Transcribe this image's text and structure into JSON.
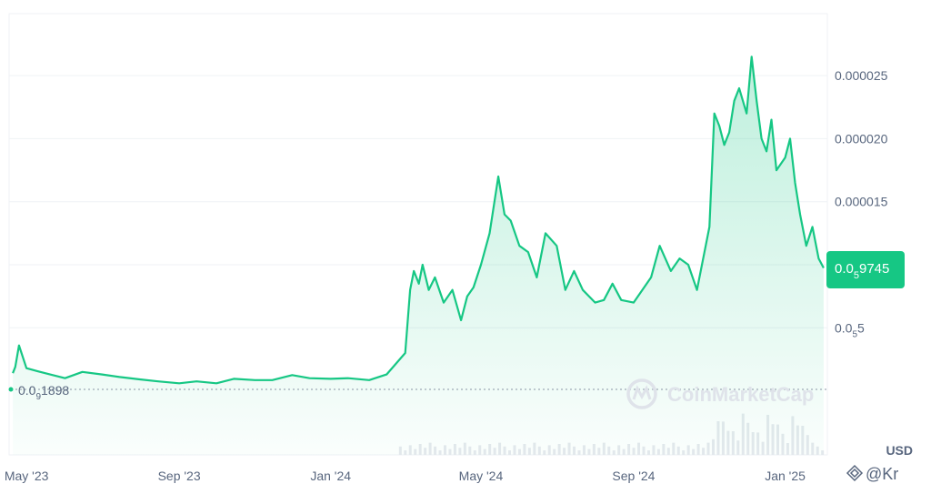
{
  "chart_data": {
    "type": "area",
    "x_labels": [
      "May '23",
      "Sep '23",
      "Jan '24",
      "May '24",
      "Sep '24",
      "Jan '25"
    ],
    "y_tick_labels": [
      "0.000025",
      "0.000020",
      "0.000015"
    ],
    "y_tick_values": [
      2.5e-05,
      2e-05,
      1.5e-05
    ],
    "y_tick_sub_label": {
      "prefix": "0.0",
      "sub": "5",
      "suffix": "5",
      "value": 5e-06
    },
    "current_price": {
      "prefix": "0.0",
      "sub": "5",
      "suffix": "9745",
      "value": 9.745e-06
    },
    "start_price": {
      "prefix": "0.0",
      "sub": "9",
      "suffix": "1898",
      "value": 1.898e-09
    },
    "unit": "USD",
    "watermark": "CoinMarketCap",
    "corner_mark": "@Kr",
    "colors": {
      "line": "#16c784",
      "badge": "#16c784",
      "grid": "#eff2f5",
      "axis_text": "#58667e",
      "volume": "#e6e9ee"
    },
    "ylim": [
      0,
      3.15e-05
    ],
    "grid": true,
    "series": [
      {
        "x": [
          "2023-04-20",
          "2023-04-22",
          "2023-04-25",
          "2023-05-01",
          "2023-05-10",
          "2023-05-20",
          "2023-06-01",
          "2023-06-15",
          "2023-07-01",
          "2023-07-15",
          "2023-08-01",
          "2023-08-15",
          "2023-09-01",
          "2023-09-15",
          "2023-10-01",
          "2023-10-15",
          "2023-11-01",
          "2023-11-15",
          "2023-12-01",
          "2023-12-15",
          "2024-01-01",
          "2024-01-15",
          "2024-02-01",
          "2024-02-15",
          "2024-03-01",
          "2024-03-05",
          "2024-03-08",
          "2024-03-12",
          "2024-03-15",
          "2024-03-20",
          "2024-03-25",
          "2024-04-01",
          "2024-04-08",
          "2024-04-15",
          "2024-04-20",
          "2024-04-25",
          "2024-05-01",
          "2024-05-08",
          "2024-05-15",
          "2024-05-20",
          "2024-05-25",
          "2024-06-01",
          "2024-06-08",
          "2024-06-15",
          "2024-06-22",
          "2024-07-01",
          "2024-07-08",
          "2024-07-15",
          "2024-07-22",
          "2024-08-01",
          "2024-08-08",
          "2024-08-15",
          "2024-08-22",
          "2024-09-01",
          "2024-09-08",
          "2024-09-15",
          "2024-09-22",
          "2024-10-01",
          "2024-10-08",
          "2024-10-15",
          "2024-10-22",
          "2024-11-01",
          "2024-11-05",
          "2024-11-09",
          "2024-11-13",
          "2024-11-17",
          "2024-11-21",
          "2024-11-25",
          "2024-12-01",
          "2024-12-05",
          "2024-12-09",
          "2024-12-13",
          "2024-12-17",
          "2024-12-21",
          "2024-12-25",
          "2025-01-01",
          "2025-01-05",
          "2025-01-09",
          "2025-01-13",
          "2025-01-18",
          "2025-01-23",
          "2025-01-28",
          "2025-02-01"
        ],
        "y": [
          1.4e-06,
          1.9e-06,
          3.6e-06,
          1.8e-06,
          1.55e-06,
          1.3e-06,
          1e-06,
          1.5e-06,
          1.3e-06,
          1.1e-06,
          9e-07,
          7.5e-07,
          6e-07,
          7.5e-07,
          6e-07,
          9.5e-07,
          8.5e-07,
          8.5e-07,
          1.25e-06,
          1e-06,
          9.5e-07,
          1e-06,
          8.5e-07,
          1.3e-06,
          3e-06,
          8e-06,
          9.5e-06,
          8.5e-06,
          1e-05,
          8e-06,
          9e-06,
          7e-06,
          8e-06,
          5.6e-06,
          7.5e-06,
          8.2e-06,
          1e-05,
          1.25e-05,
          1.7e-05,
          1.4e-05,
          1.35e-05,
          1.15e-05,
          1.1e-05,
          9e-06,
          1.25e-05,
          1.15e-05,
          8e-06,
          9.5e-06,
          8e-06,
          7e-06,
          7.2e-06,
          8.5e-06,
          7.2e-06,
          7e-06,
          8e-06,
          9e-06,
          1.15e-05,
          9.5e-06,
          1.05e-05,
          1e-05,
          8e-06,
          1.3e-05,
          2.2e-05,
          2.1e-05,
          1.95e-05,
          2.05e-05,
          2.3e-05,
          2.4e-05,
          2.2e-05,
          2.65e-05,
          2.3e-05,
          2e-05,
          1.9e-05,
          2.15e-05,
          1.75e-05,
          1.85e-05,
          2e-05,
          1.65e-05,
          1.4e-05,
          1.15e-05,
          1.3e-05,
          1.05e-05,
          9.75e-06
        ]
      }
    ]
  }
}
